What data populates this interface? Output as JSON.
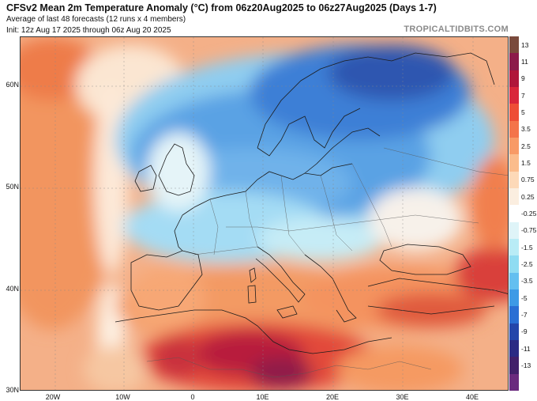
{
  "header": {
    "title": "CFSv2 Mean 2m Temperature Anomaly (°C) from 06z20Aug2025 to 06z27Aug2025 (Days 1-7)",
    "subtitle": "Average of last 48 forecasts (12 runs x 4 members)",
    "init": "Init: 12z Aug 17 2025 through 06z Aug 20 2025",
    "credit": "TROPICALTIDBITS.COM"
  },
  "axes": {
    "lat_labels": [
      {
        "value": 60,
        "label": "60N"
      },
      {
        "value": 50,
        "label": "50N"
      },
      {
        "value": 40,
        "label": "40N"
      },
      {
        "value": 30,
        "label": "30N"
      }
    ],
    "lon_labels": [
      {
        "value": -20,
        "label": "20W"
      },
      {
        "value": -10,
        "label": "10W"
      },
      {
        "value": 0,
        "label": "0"
      },
      {
        "value": 10,
        "label": "10E"
      },
      {
        "value": 20,
        "label": "20E"
      },
      {
        "value": 30,
        "label": "30E"
      },
      {
        "value": 40,
        "label": "40E"
      }
    ]
  },
  "colorbar": {
    "labels": [
      "13",
      "11",
      "9",
      "7",
      "5",
      "3.5",
      "2.5",
      "1.5",
      "0.75",
      "0.25",
      "-0.25",
      "-0.75",
      "-1.5",
      "-2.5",
      "-3.5",
      "-5",
      "-7",
      "-9",
      "-11",
      "-13"
    ],
    "colors": [
      "#7a4a3c",
      "#8c1a4a",
      "#b0163a",
      "#d9263a",
      "#ee4e36",
      "#f4744a",
      "#f89a66",
      "#fbbc8c",
      "#fdd9b8",
      "#fbeee0",
      "#ffffff",
      "#dff4f8",
      "#b9ecf6",
      "#8fdcf2",
      "#64bff0",
      "#3d9ae6",
      "#2a6fd4",
      "#2446aa",
      "#2b2a84",
      "#42206a",
      "#6a2a7e"
    ]
  },
  "map_colors": {
    "ocean_warm": "#f3b489",
    "land_border": "#222222"
  }
}
